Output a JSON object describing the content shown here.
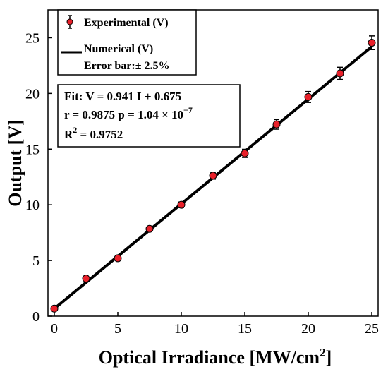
{
  "chart_data": {
    "type": "scatter",
    "title": "",
    "xlabel": "Optical Irradiance [MW/cm",
    "xlabel_sup": "2",
    "xlabel_end": "]",
    "ylabel": "Output [V]",
    "xlim": [
      -0.5,
      25.5
    ],
    "ylim": [
      0,
      27.5
    ],
    "xticks": [
      0,
      5,
      10,
      15,
      20,
      25
    ],
    "yticks": [
      0,
      5,
      10,
      15,
      20,
      25
    ],
    "grid": false,
    "legend_position": "top-left",
    "series": [
      {
        "name": "Experimental (V)",
        "kind": "scatter_errorbar",
        "color": "#e8202a",
        "x": [
          0,
          2.5,
          5,
          7.5,
          10,
          12.5,
          15,
          17.5,
          20,
          22.5,
          25
        ],
        "y": [
          0.68,
          3.38,
          5.2,
          7.84,
          10.0,
          12.62,
          14.62,
          17.22,
          19.68,
          21.8,
          24.55
        ],
        "error_percent": 2.5
      },
      {
        "name": "Numerical (V)",
        "kind": "line",
        "color": "#000000",
        "x": [
          0,
          25
        ],
        "y": [
          0.675,
          24.2
        ]
      }
    ],
    "legend_extra": "Error bar:± 2.5%",
    "fit_box": {
      "line1": "Fit:  V = 0.941 I + 0.675",
      "line2_a": "r = 0.9875   p = 1.04 × 10",
      "line2_sup": "−7",
      "line3_a": "R",
      "line3_sup": "2",
      "line3_b": " = 0.9752"
    }
  }
}
